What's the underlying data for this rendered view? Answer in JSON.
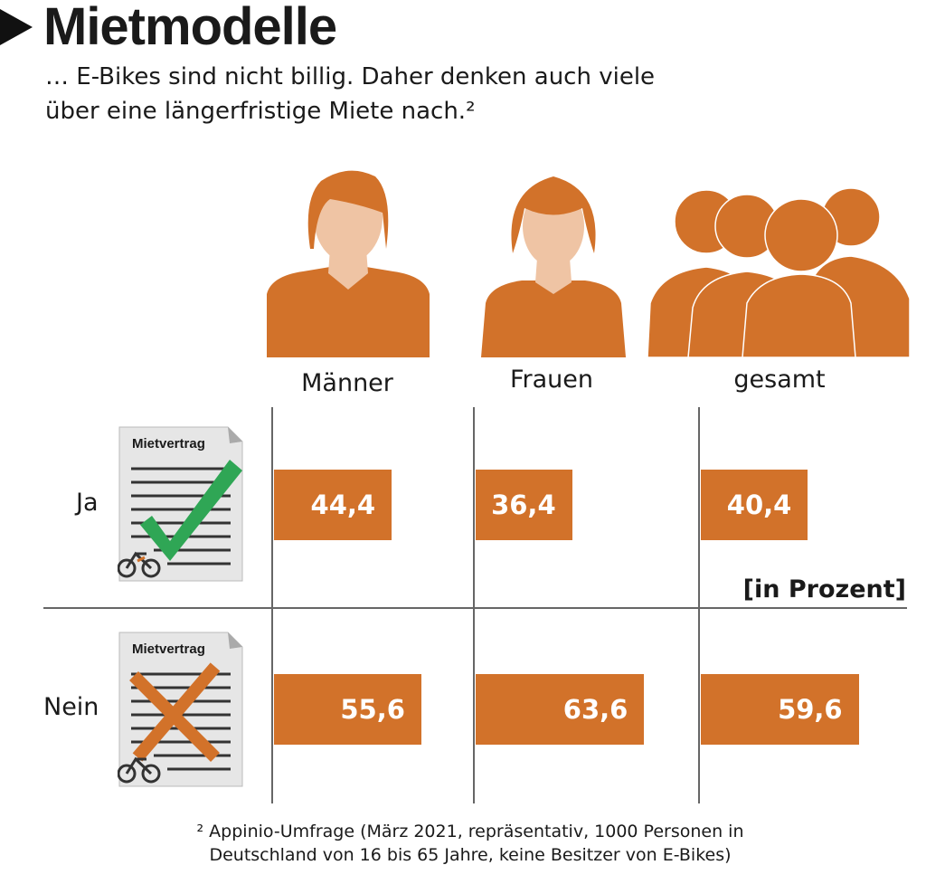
{
  "header": {
    "title": "Mietmodelle",
    "subtitle_line1": "… E-Bikes sind nicht billig. Daher denken auch viele",
    "subtitle_line2": "über eine längerfristige Miete nach.²"
  },
  "documents": {
    "label": "Mietvertrag"
  },
  "unit_label": "[in Prozent]",
  "footnote_line1": "² Appinio-Umfrage (März 2021, repräsentativ, 1000 Personen in",
  "footnote_line2": "Deutschland von 16 bis 65 Jahre, keine Besitzer von E-Bikes)",
  "colors": {
    "bar": "#d2722a",
    "check": "#2fa655",
    "cross": "#d2722a",
    "person": "#d2722a",
    "skin": "#efc4a4"
  },
  "chart_data": {
    "type": "bar",
    "title": "Mietmodelle",
    "categories": [
      "Männer",
      "Frauen",
      "gesamt"
    ],
    "series": [
      {
        "name": "Ja",
        "values": [
          44.4,
          36.4,
          40.4
        ],
        "labels": [
          "44,4",
          "36,4",
          "40,4"
        ]
      },
      {
        "name": "Nein",
        "values": [
          55.6,
          63.6,
          59.6
        ],
        "labels": [
          "55,6",
          "63,6",
          "59,6"
        ]
      }
    ],
    "unit": "Prozent",
    "xlim": [
      0,
      100
    ]
  }
}
